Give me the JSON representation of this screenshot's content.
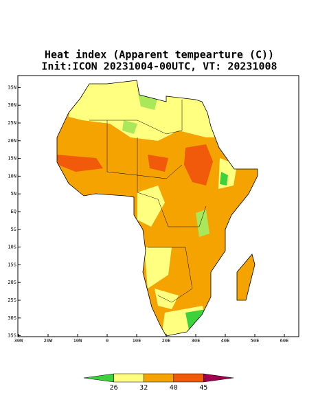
{
  "header": {
    "title": "Heat index (Apparent tempearture (C))",
    "subtitle": "Init:ICON 20231004-00UTC, VT: 20231008"
  },
  "map": {
    "lat_ticks": [
      {
        "value": 35,
        "label": "35N"
      },
      {
        "value": 30,
        "label": "30N"
      },
      {
        "value": 25,
        "label": "25N"
      },
      {
        "value": 20,
        "label": "20N"
      },
      {
        "value": 15,
        "label": "15N"
      },
      {
        "value": 10,
        "label": "10N"
      },
      {
        "value": 5,
        "label": "5N"
      },
      {
        "value": 0,
        "label": "EQ"
      },
      {
        "value": -5,
        "label": "5S"
      },
      {
        "value": -10,
        "label": "10S"
      },
      {
        "value": -15,
        "label": "15S"
      },
      {
        "value": -20,
        "label": "20S"
      },
      {
        "value": -25,
        "label": "25S"
      },
      {
        "value": -30,
        "label": "30S"
      },
      {
        "value": -35,
        "label": "35S"
      }
    ],
    "lon_ticks": [
      {
        "value": -30,
        "label": "30W"
      },
      {
        "value": -20,
        "label": "20W"
      },
      {
        "value": -10,
        "label": "10W"
      },
      0,
      {
        "value": 10,
        "label": "10E"
      },
      {
        "value": 20,
        "label": "20E"
      },
      {
        "value": 30,
        "label": "30E"
      },
      {
        "value": 40,
        "label": "40E"
      },
      {
        "value": 50,
        "label": "50E"
      },
      {
        "value": 60,
        "label": "60E"
      }
    ]
  },
  "colorbar": {
    "levels": [
      26,
      32,
      40,
      45
    ],
    "colors": [
      "#3cd23c",
      "#ffff80",
      "#f5a300",
      "#f05a0a",
      "#a0004f"
    ]
  }
}
